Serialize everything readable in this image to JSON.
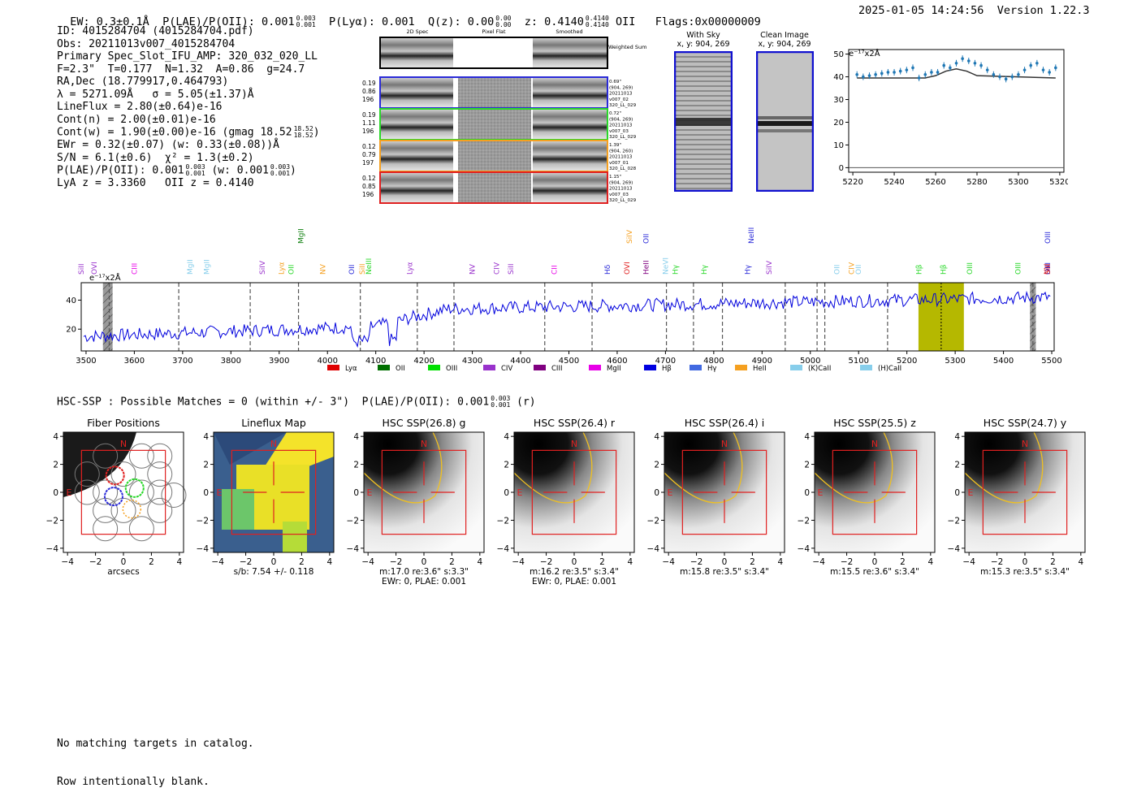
{
  "header": {
    "ew": "EW: 0.3±0.1Å",
    "plae_prefix": "P(LAE)/P(OII): 0.001",
    "plae_hi": "0.003",
    "plae_lo": "0.001",
    "plya": "P(Lyα): 0.001",
    "qz_prefix": "Q(z): 0.00",
    "qz_hi": "0.00",
    "qz_lo": "0.00",
    "z_prefix": "z: 0.4140",
    "z_hi": "0.4140",
    "z_lo": "0.4140",
    "z_suffix": "OII",
    "flags": "Flags:0x00000009",
    "datetime": "2025-01-05 14:24:56",
    "version": "Version 1.22.3"
  },
  "info": {
    "id": "ID: 4015284704 (4015284704.pdf)",
    "obs": "Obs: 20211013v007_4015284704",
    "primary": "Primary Spec_Slot_IFU_AMP: 320_032_020_LL",
    "params": "F=2.3\"  T=0.177  N=1.32  A=0.86  g=24.7",
    "radec": "RA,Dec (18.779917,0.464793)",
    "lambda": "λ = 5271.09Å   σ = 5.05(±1.37)Å",
    "lineflux": "LineFlux = 2.80(±0.64)e-16",
    "contn": "Cont(n) = 2.00(±0.01)e-16",
    "contw_prefix": "Cont(w) = 1.90(±0.00)e-16 (gmag 18.52",
    "contw_hi": "18.52",
    "contw_lo": "18.52",
    "contw_suffix": ")",
    "ewr": "EWr = 0.32(±0.07) (w: 0.33(±0.08))Å",
    "sn": "S/N = 6.1(±0.6)  χ² = 1.3(±0.2)",
    "plae_prefix": "P(LAE)/P(OII): 0.001",
    "plae_hi": "0.003",
    "plae_lo": "0.001",
    "plae_mid": " (w: 0.001",
    "plae_w_hi": "0.003",
    "plae_w_lo": "0.001",
    "plae_suffix": ")",
    "lyaz": "LyA z = 3.3360   OII z = 0.4140"
  },
  "cutouts": {
    "col_headers": [
      "2D Spec",
      "Pixel Flat",
      "Smoothed"
    ],
    "weighted_sum": "Weighted Sum",
    "rows": [
      {
        "left": [
          "0.19",
          "0.86",
          "196"
        ],
        "right": [
          "0.69\"",
          "(904, 269)",
          "20211013",
          "v007_02",
          "320_LL_029"
        ],
        "color": "#2a2ad8"
      },
      {
        "left": [
          "0.19",
          "1.11",
          "196"
        ],
        "right": [
          "0.72\"",
          "(904, 269)",
          "20211013",
          "v007_03",
          "320_LL_029"
        ],
        "color": "#2ad82a"
      },
      {
        "left": [
          "0.12",
          "0.79",
          "197"
        ],
        "right": [
          "1.39\"",
          "(904, 260)",
          "20211013",
          "v007_01",
          "320_LL_028"
        ],
        "color": "#f5a020"
      },
      {
        "left": [
          "0.12",
          "0.85",
          "196"
        ],
        "right": [
          "1.15\"",
          "(904, 269)",
          "20211013",
          "v007_03",
          "320_LL_029"
        ],
        "color": "#e02020"
      }
    ],
    "with_sky_title": "With Sky",
    "with_sky_xy": "x, y: 904, 269",
    "clean_title": "Clean Image",
    "clean_xy": "x, y: 904, 269"
  },
  "zoom_chart": {
    "unit": "e⁻¹⁷x2Å",
    "x": [
      5222,
      5225,
      5228,
      5231,
      5234,
      5237,
      5240,
      5243,
      5246,
      5249,
      5252,
      5255,
      5258,
      5261,
      5264,
      5267,
      5270,
      5273,
      5276,
      5279,
      5282,
      5285,
      5288,
      5291,
      5294,
      5297,
      5300,
      5303,
      5306,
      5309,
      5312,
      5315,
      5318
    ],
    "y": [
      41,
      40,
      40.5,
      41,
      41.5,
      42,
      42,
      42.5,
      43,
      44,
      39.5,
      41,
      42,
      42,
      45,
      44,
      46,
      48,
      47,
      46,
      45,
      43,
      41,
      40,
      39,
      40,
      41,
      43,
      45,
      46,
      43,
      42,
      44
    ],
    "model_x": [
      5222,
      5255,
      5260,
      5265,
      5270,
      5275,
      5280,
      5318
    ],
    "model_y": [
      39.5,
      39.5,
      40.5,
      42.5,
      43.5,
      42.5,
      40.5,
      39.5
    ],
    "xticks": [
      "5220",
      "5240",
      "5260",
      "5280",
      "5300",
      "5320"
    ],
    "yticks": [
      "0",
      "10",
      "20",
      "30",
      "40",
      "50"
    ],
    "xlim": [
      5218,
      5322
    ],
    "ylim": [
      -2,
      52
    ]
  },
  "full_spectrum": {
    "unit": "e⁻¹⁷x2Å",
    "xticks": [
      "3500",
      "3600",
      "3700",
      "3800",
      "3900",
      "4000",
      "4100",
      "4200",
      "4300",
      "4400",
      "4500",
      "4600",
      "4700",
      "4800",
      "4900",
      "5000",
      "5100",
      "5200",
      "5300",
      "5400",
      "5500"
    ],
    "yticks": [
      "20",
      "40"
    ],
    "xlim": [
      3490,
      5505
    ],
    "ylim": [
      5,
      52
    ],
    "highlight_range": [
      5224,
      5318
    ],
    "line_wavelength": 5271,
    "hatched_bins": [
      [
        3535,
        3555
      ],
      [
        5455,
        5467
      ]
    ],
    "dashed_lines": [
      3548,
      3692,
      3840,
      3940,
      4068,
      4186,
      4262,
      4450,
      4548,
      4702,
      4758,
      4818,
      4948,
      5014,
      5030,
      5160,
      5461
    ],
    "line_labels": [
      {
        "wl": 3490,
        "text": "SiII",
        "color": "#9932cc",
        "row": 0
      },
      {
        "wl": 3517,
        "text": "OVI",
        "color": "#9932cc",
        "row": 0
      },
      {
        "wl": 3600,
        "text": "CIII",
        "color": "#e800e8",
        "row": 0
      },
      {
        "wl": 3715,
        "text": "MgII",
        "color": "#87ceeb",
        "row": 0
      },
      {
        "wl": 3750,
        "text": "MgII",
        "color": "#87ceeb",
        "row": 0
      },
      {
        "wl": 3865,
        "text": "SiIV",
        "color": "#9932cc",
        "row": 0
      },
      {
        "wl": 3905,
        "text": "Lyα",
        "color": "#f5a020",
        "row": 0
      },
      {
        "wl": 3925,
        "text": "OII",
        "color": "#2ad82a",
        "row": 0
      },
      {
        "wl": 3945,
        "text": "MgII",
        "color": "#108010",
        "row": 1
      },
      {
        "wl": 3990,
        "text": "NV",
        "color": "#f5a020",
        "row": 0
      },
      {
        "wl": 4050,
        "text": "OII",
        "color": "#2a2ad8",
        "row": 0
      },
      {
        "wl": 4072,
        "text": "SiII",
        "color": "#f5a020",
        "row": 0
      },
      {
        "wl": 4085,
        "text": "NeIII",
        "color": "#2ad82a",
        "row": 0
      },
      {
        "wl": 4170,
        "text": "Lyα",
        "color": "#9932cc",
        "row": 0
      },
      {
        "wl": 4300,
        "text": "NV",
        "color": "#9932cc",
        "row": 0
      },
      {
        "wl": 4350,
        "text": "CIV",
        "color": "#9932cc",
        "row": 0
      },
      {
        "wl": 4380,
        "text": "SiII",
        "color": "#9932cc",
        "row": 0
      },
      {
        "wl": 4470,
        "text": "CII",
        "color": "#e800e8",
        "row": 0
      },
      {
        "wl": 4580,
        "text": "Hδ",
        "color": "#2a2ad8",
        "row": 0
      },
      {
        "wl": 4620,
        "text": "OVI",
        "color": "#e02020",
        "row": 0
      },
      {
        "wl": 4625,
        "text": "SiIV",
        "color": "#f5a020",
        "row": 2
      },
      {
        "wl": 4660,
        "text": "OII",
        "color": "#2a2ad8",
        "row": 2
      },
      {
        "wl": 4660,
        "text": "HeII",
        "color": "#800080",
        "row": 0
      },
      {
        "wl": 4700,
        "text": "NeVI",
        "color": "#87ceeb",
        "row": 0
      },
      {
        "wl": 4720,
        "text": "Hγ",
        "color": "#2ad82a",
        "row": 0
      },
      {
        "wl": 4780,
        "text": "Hγ",
        "color": "#2ad82a",
        "row": 0
      },
      {
        "wl": 4870,
        "text": "Hγ",
        "color": "#2a2ad8",
        "row": 0
      },
      {
        "wl": 4878,
        "text": "NeIII",
        "color": "#2a2ad8",
        "row": 2
      },
      {
        "wl": 4915,
        "text": "SiIV",
        "color": "#9932cc",
        "row": 0
      },
      {
        "wl": 5055,
        "text": "OII",
        "color": "#87ceeb",
        "row": 0
      },
      {
        "wl": 5085,
        "text": "CIV",
        "color": "#f5a020",
        "row": 0
      },
      {
        "wl": 5100,
        "text": "OII",
        "color": "#87ceeb",
        "row": 0
      },
      {
        "wl": 5225,
        "text": "Hβ",
        "color": "#2ad82a",
        "row": 0
      },
      {
        "wl": 5275,
        "text": "Hβ",
        "color": "#2ad82a",
        "row": 0
      },
      {
        "wl": 5330,
        "text": "OIII",
        "color": "#2ad82a",
        "row": 0
      },
      {
        "wl": 5430,
        "text": "OIII",
        "color": "#2ad82a",
        "row": 0
      },
      {
        "wl": 5490,
        "text": "NV",
        "color": "#e02020",
        "row": 0
      },
      {
        "wl": 5540,
        "text": "OIII",
        "color": "#2a2ad8",
        "row": 0
      },
      {
        "wl": 5525,
        "text": "OIII",
        "color": "#2a2ad8",
        "row": 2
      },
      {
        "wl": 5590,
        "text": "SiII",
        "color": "#e02020",
        "row": 0
      }
    ],
    "legend": [
      {
        "label": "Lyα",
        "color": "#e00000"
      },
      {
        "label": "OII",
        "color": "#007000"
      },
      {
        "label": "OIII",
        "color": "#00e000"
      },
      {
        "label": "CIV",
        "color": "#9932cc"
      },
      {
        "label": "CIII",
        "color": "#800080"
      },
      {
        "label": "MgII",
        "color": "#e800e8"
      },
      {
        "label": "Hβ",
        "color": "#0000e0"
      },
      {
        "label": "Hγ",
        "color": "#4169e1"
      },
      {
        "label": "HeII",
        "color": "#f5a020"
      },
      {
        "label": "(K)CaII",
        "color": "#87ceeb"
      },
      {
        "label": "(H)CaII",
        "color": "#87ceeb"
      }
    ]
  },
  "hsc": {
    "summary_prefix": "HSC-SSP : Possible Matches = 0 (within +/- 3\")  P(LAE)/P(OII): 0.001",
    "summary_hi": "0.003",
    "summary_lo": "0.001",
    "summary_suffix": "(r)",
    "ticks": [
      "−4",
      "−2",
      "0",
      "2",
      "4"
    ],
    "north": "N",
    "east": "E",
    "panels": [
      {
        "title": "Fiber Positions",
        "cap1": "arcsecs",
        "cap2": "",
        "kind": "fiber"
      },
      {
        "title": "Lineflux Map",
        "cap1": "s/b: 7.54 +/- 0.118",
        "cap2": "",
        "kind": "lineflux"
      },
      {
        "title": "HSC SSP(26.8) g",
        "cap1": "m:17.0  re:3.6\"  s:3.3\"",
        "cap2": "EWr: 0, PLAE: 0.001",
        "kind": "img"
      },
      {
        "title": "HSC SSP(26.4) r",
        "cap1": "m:16.2  re:3.5\"  s:3.4\"",
        "cap2": "EWr: 0, PLAE: 0.001",
        "kind": "img"
      },
      {
        "title": "HSC SSP(26.4) i",
        "cap1": "m:15.8  re:3.5\"  s:3.4\"",
        "cap2": "",
        "kind": "img"
      },
      {
        "title": "HSC SSP(25.5) z",
        "cap1": "m:15.5  re:3.6\"  s:3.4\"",
        "cap2": "",
        "kind": "img"
      },
      {
        "title": "HSC SSP(24.7) y",
        "cap1": "m:15.3  re:3.5\"  s:3.4\"",
        "cap2": "",
        "kind": "img"
      }
    ]
  },
  "footer": {
    "line1": "No matching targets in catalog.",
    "line2": "Row intentionally blank."
  },
  "chart_data": [
    {
      "type": "scatter",
      "title": "",
      "xlabel": "",
      "ylabel": "e⁻¹⁷x2Å",
      "xlim": [
        5218,
        5322
      ],
      "ylim": [
        -2,
        52
      ],
      "x": [
        5222,
        5225,
        5228,
        5231,
        5234,
        5237,
        5240,
        5243,
        5246,
        5249,
        5252,
        5255,
        5258,
        5261,
        5264,
        5267,
        5270,
        5273,
        5276,
        5279,
        5282,
        5285,
        5288,
        5291,
        5294,
        5297,
        5300,
        5303,
        5306,
        5309,
        5312,
        5315,
        5318
      ],
      "y": [
        41,
        40,
        40.5,
        41,
        41.5,
        42,
        42,
        42.5,
        43,
        44,
        39.5,
        41,
        42,
        42,
        45,
        44,
        46,
        48,
        47,
        46,
        45,
        43,
        41,
        40,
        39,
        40,
        41,
        43,
        45,
        46,
        43,
        42,
        44
      ]
    },
    {
      "type": "line",
      "title": "",
      "xlabel": "",
      "ylabel": "e⁻¹⁷x2Å",
      "xlim": [
        3490,
        5505
      ],
      "ylim": [
        5,
        52
      ],
      "series": [
        {
          "values_range": "3500-5500"
        }
      ]
    }
  ]
}
